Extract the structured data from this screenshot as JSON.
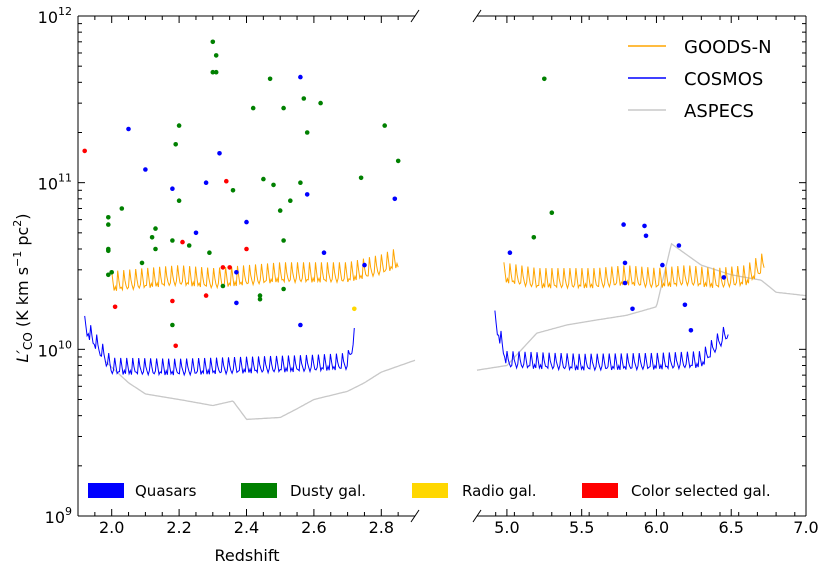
{
  "chart_data": {
    "type": "line",
    "panels": [
      {
        "name": "left",
        "xlim": [
          1.9,
          2.9
        ],
        "xticks": [
          2.0,
          2.2,
          2.4,
          2.6,
          2.8
        ],
        "xticklabels": [
          "2.0",
          "2.2",
          "2.4",
          "2.6",
          "2.8"
        ]
      },
      {
        "name": "right",
        "xlim": [
          4.8,
          7.0
        ],
        "xticks": [
          5.0,
          5.5,
          6.0,
          6.5,
          7.0
        ],
        "xticklabels": [
          "5.0",
          "5.5",
          "6.0",
          "6.5",
          "7.0"
        ]
      }
    ],
    "xlabel": "Redshift",
    "ylabel_main": "L′",
    "ylabel_sub": "CO",
    "ylabel_units": "(K km s",
    "ylabel_units_mid": " pc",
    "ylabel_units_end": ")",
    "ylabel_exp1": "−1",
    "ylabel_exp2": "2",
    "yscale": "log",
    "ylim": [
      1000000000.0,
      1000000000000.0
    ],
    "yticks": [
      {
        "base": "10",
        "exp": "9",
        "value": 1000000000.0
      },
      {
        "base": "10",
        "exp": "10",
        "value": 10000000000.0
      },
      {
        "base": "10",
        "exp": "11",
        "value": 100000000000.0
      },
      {
        "base": "10",
        "exp": "12",
        "value": 1000000000000.0
      }
    ],
    "series": [
      {
        "name": "GOODS-N",
        "color": "#FFA500",
        "left": {
          "x": [
            2.0,
            2.1,
            2.2,
            2.3,
            2.4,
            2.5,
            2.6,
            2.7,
            2.8,
            2.85
          ],
          "y": [
            23000000000.0,
            24000000000.0,
            25000000000.0,
            24000000000.0,
            25000000000.0,
            26000000000.0,
            26000000000.0,
            26000000000.0,
            29000000000.0,
            32000000000.0
          ]
        },
        "right": {
          "x": [
            4.98,
            5.2,
            5.4,
            5.6,
            5.8,
            6.0,
            6.2,
            6.4,
            6.6,
            6.72
          ],
          "y": [
            26000000000.0,
            24000000000.0,
            24000000000.0,
            24000000000.0,
            25000000000.0,
            24000000000.0,
            25000000000.0,
            24000000000.0,
            25000000000.0,
            30000000000.0
          ]
        }
      },
      {
        "name": "COSMOS",
        "color": "#0000FF",
        "left": {
          "x": [
            1.92,
            2.0,
            2.2,
            2.4,
            2.6,
            2.7,
            2.72
          ],
          "y": [
            13000000000.0,
            7300000000.0,
            7200000000.0,
            7400000000.0,
            7600000000.0,
            7800000000.0,
            11000000000.0
          ]
        },
        "right": {
          "x": [
            4.92,
            5.0,
            5.5,
            6.0,
            6.3,
            6.48
          ],
          "y": [
            14000000000.0,
            8000000000.0,
            7700000000.0,
            7800000000.0,
            8000000000.0,
            12000000000.0
          ]
        }
      },
      {
        "name": "ASPECS",
        "color": "#C8C8C8",
        "left": {
          "x": [
            1.98,
            2.05,
            2.1,
            2.2,
            2.3,
            2.36,
            2.4,
            2.5,
            2.55,
            2.6,
            2.7,
            2.75,
            2.8,
            2.9
          ],
          "y": [
            8500000000.0,
            6300000000.0,
            5400000000.0,
            5000000000.0,
            4600000000.0,
            4900000000.0,
            3800000000.0,
            3900000000.0,
            4400000000.0,
            5000000000.0,
            5600000000.0,
            6300000000.0,
            7300000000.0,
            8600000000.0
          ]
        },
        "right": {
          "x": [
            4.8,
            5.0,
            5.2,
            5.4,
            5.6,
            5.8,
            6.0,
            6.1,
            6.3,
            6.5,
            6.7,
            6.8,
            7.0
          ],
          "y": [
            7500000000.0,
            8000000000.0,
            12500000000.0,
            14000000000.0,
            15000000000.0,
            16000000000.0,
            18000000000.0,
            43000000000.0,
            32000000000.0,
            28000000000.0,
            26000000000.0,
            22000000000.0,
            21000000000.0
          ]
        }
      }
    ],
    "points": {
      "categories": [
        {
          "name": "Quasars",
          "color": "#0000FF"
        },
        {
          "name": "Dusty gal.",
          "color": "#008000"
        },
        {
          "name": "Radio gal.",
          "color": "#FFD700"
        },
        {
          "name": "Color selected gal.",
          "color": "#FF0000"
        }
      ],
      "left": [
        [
          2.05,
          210000000000.0,
          "Quasars"
        ],
        [
          2.1,
          120000000000.0,
          "Quasars"
        ],
        [
          2.18,
          92000000000.0,
          "Quasars"
        ],
        [
          2.25,
          50000000000.0,
          "Quasars"
        ],
        [
          2.28,
          100000000000.0,
          "Quasars"
        ],
        [
          2.32,
          150000000000.0,
          "Quasars"
        ],
        [
          2.37,
          29000000000.0,
          "Quasars"
        ],
        [
          2.37,
          19000000000.0,
          "Quasars"
        ],
        [
          2.4,
          58000000000.0,
          "Quasars"
        ],
        [
          2.56,
          430000000000.0,
          "Quasars"
        ],
        [
          2.56,
          14000000000.0,
          "Quasars"
        ],
        [
          2.58,
          85000000000.0,
          "Quasars"
        ],
        [
          2.63,
          38000000000.0,
          "Quasars"
        ],
        [
          2.75,
          32000000000.0,
          "Quasars"
        ],
        [
          2.84,
          80000000000.0,
          "Quasars"
        ],
        [
          1.99,
          62000000000.0,
          "Dusty gal."
        ],
        [
          1.99,
          56000000000.0,
          "Dusty gal."
        ],
        [
          1.99,
          40000000000.0,
          "Dusty gal."
        ],
        [
          1.99,
          39000000000.0,
          "Dusty gal."
        ],
        [
          1.99,
          28000000000.0,
          "Dusty gal."
        ],
        [
          2.0,
          29000000000.0,
          "Dusty gal."
        ],
        [
          2.03,
          70000000000.0,
          "Dusty gal."
        ],
        [
          2.09,
          33000000000.0,
          "Dusty gal."
        ],
        [
          2.12,
          47000000000.0,
          "Dusty gal."
        ],
        [
          2.13,
          53000000000.0,
          "Dusty gal."
        ],
        [
          2.13,
          40000000000.0,
          "Dusty gal."
        ],
        [
          2.18,
          45000000000.0,
          "Dusty gal."
        ],
        [
          2.18,
          14000000000.0,
          "Dusty gal."
        ],
        [
          2.19,
          170000000000.0,
          "Dusty gal."
        ],
        [
          2.2,
          220000000000.0,
          "Dusty gal."
        ],
        [
          2.2,
          78000000000.0,
          "Dusty gal."
        ],
        [
          2.23,
          42000000000.0,
          "Dusty gal."
        ],
        [
          2.29,
          38000000000.0,
          "Dusty gal."
        ],
        [
          2.3,
          700000000000.0,
          "Dusty gal."
        ],
        [
          2.3,
          460000000000.0,
          "Dusty gal."
        ],
        [
          2.31,
          460000000000.0,
          "Dusty gal."
        ],
        [
          2.31,
          580000000000.0,
          "Dusty gal."
        ],
        [
          2.33,
          24000000000.0,
          "Dusty gal."
        ],
        [
          2.36,
          90000000000.0,
          "Dusty gal."
        ],
        [
          2.42,
          280000000000.0,
          "Dusty gal."
        ],
        [
          2.44,
          20000000000.0,
          "Dusty gal."
        ],
        [
          2.44,
          21000000000.0,
          "Dusty gal."
        ],
        [
          2.45,
          105000000000.0,
          "Dusty gal."
        ],
        [
          2.47,
          420000000000.0,
          "Dusty gal."
        ],
        [
          2.48,
          97000000000.0,
          "Dusty gal."
        ],
        [
          2.5,
          68000000000.0,
          "Dusty gal."
        ],
        [
          2.51,
          280000000000.0,
          "Dusty gal."
        ],
        [
          2.51,
          45000000000.0,
          "Dusty gal."
        ],
        [
          2.51,
          23000000000.0,
          "Dusty gal."
        ],
        [
          2.53,
          78000000000.0,
          "Dusty gal."
        ],
        [
          2.56,
          100000000000.0,
          "Dusty gal."
        ],
        [
          2.57,
          320000000000.0,
          "Dusty gal."
        ],
        [
          2.58,
          200000000000.0,
          "Dusty gal."
        ],
        [
          2.62,
          300000000000.0,
          "Dusty gal."
        ],
        [
          2.74,
          107000000000.0,
          "Dusty gal."
        ],
        [
          2.81,
          220000000000.0,
          "Dusty gal."
        ],
        [
          2.85,
          135000000000.0,
          "Dusty gal."
        ],
        [
          2.72,
          17500000000.0,
          "Radio gal."
        ],
        [
          1.92,
          155000000000.0,
          "Color selected gal."
        ],
        [
          2.01,
          18000000000.0,
          "Color selected gal."
        ],
        [
          2.18,
          19500000000.0,
          "Color selected gal."
        ],
        [
          2.19,
          10500000000.0,
          "Color selected gal."
        ],
        [
          2.21,
          44000000000.0,
          "Color selected gal."
        ],
        [
          2.28,
          21000000000.0,
          "Color selected gal."
        ],
        [
          2.33,
          31000000000.0,
          "Color selected gal."
        ],
        [
          2.34,
          102000000000.0,
          "Color selected gal."
        ],
        [
          2.35,
          31000000000.0,
          "Color selected gal."
        ],
        [
          2.4,
          40000000000.0,
          "Color selected gal."
        ]
      ],
      "right": [
        [
          5.02,
          38000000000.0,
          "Quasars"
        ],
        [
          5.78,
          56000000000.0,
          "Quasars"
        ],
        [
          5.79,
          33000000000.0,
          "Quasars"
        ],
        [
          5.79,
          25000000000.0,
          "Quasars"
        ],
        [
          5.84,
          17500000000.0,
          "Quasars"
        ],
        [
          5.92,
          55000000000.0,
          "Quasars"
        ],
        [
          5.93,
          48000000000.0,
          "Quasars"
        ],
        [
          6.04,
          32000000000.0,
          "Quasars"
        ],
        [
          6.15,
          42000000000.0,
          "Quasars"
        ],
        [
          6.19,
          18500000000.0,
          "Quasars"
        ],
        [
          6.23,
          13000000000.0,
          "Quasars"
        ],
        [
          6.45,
          27000000000.0,
          "Quasars"
        ],
        [
          5.18,
          47000000000.0,
          "Dusty gal."
        ],
        [
          5.25,
          420000000000.0,
          "Dusty gal."
        ],
        [
          5.3,
          66000000000.0,
          "Dusty gal."
        ]
      ]
    }
  }
}
